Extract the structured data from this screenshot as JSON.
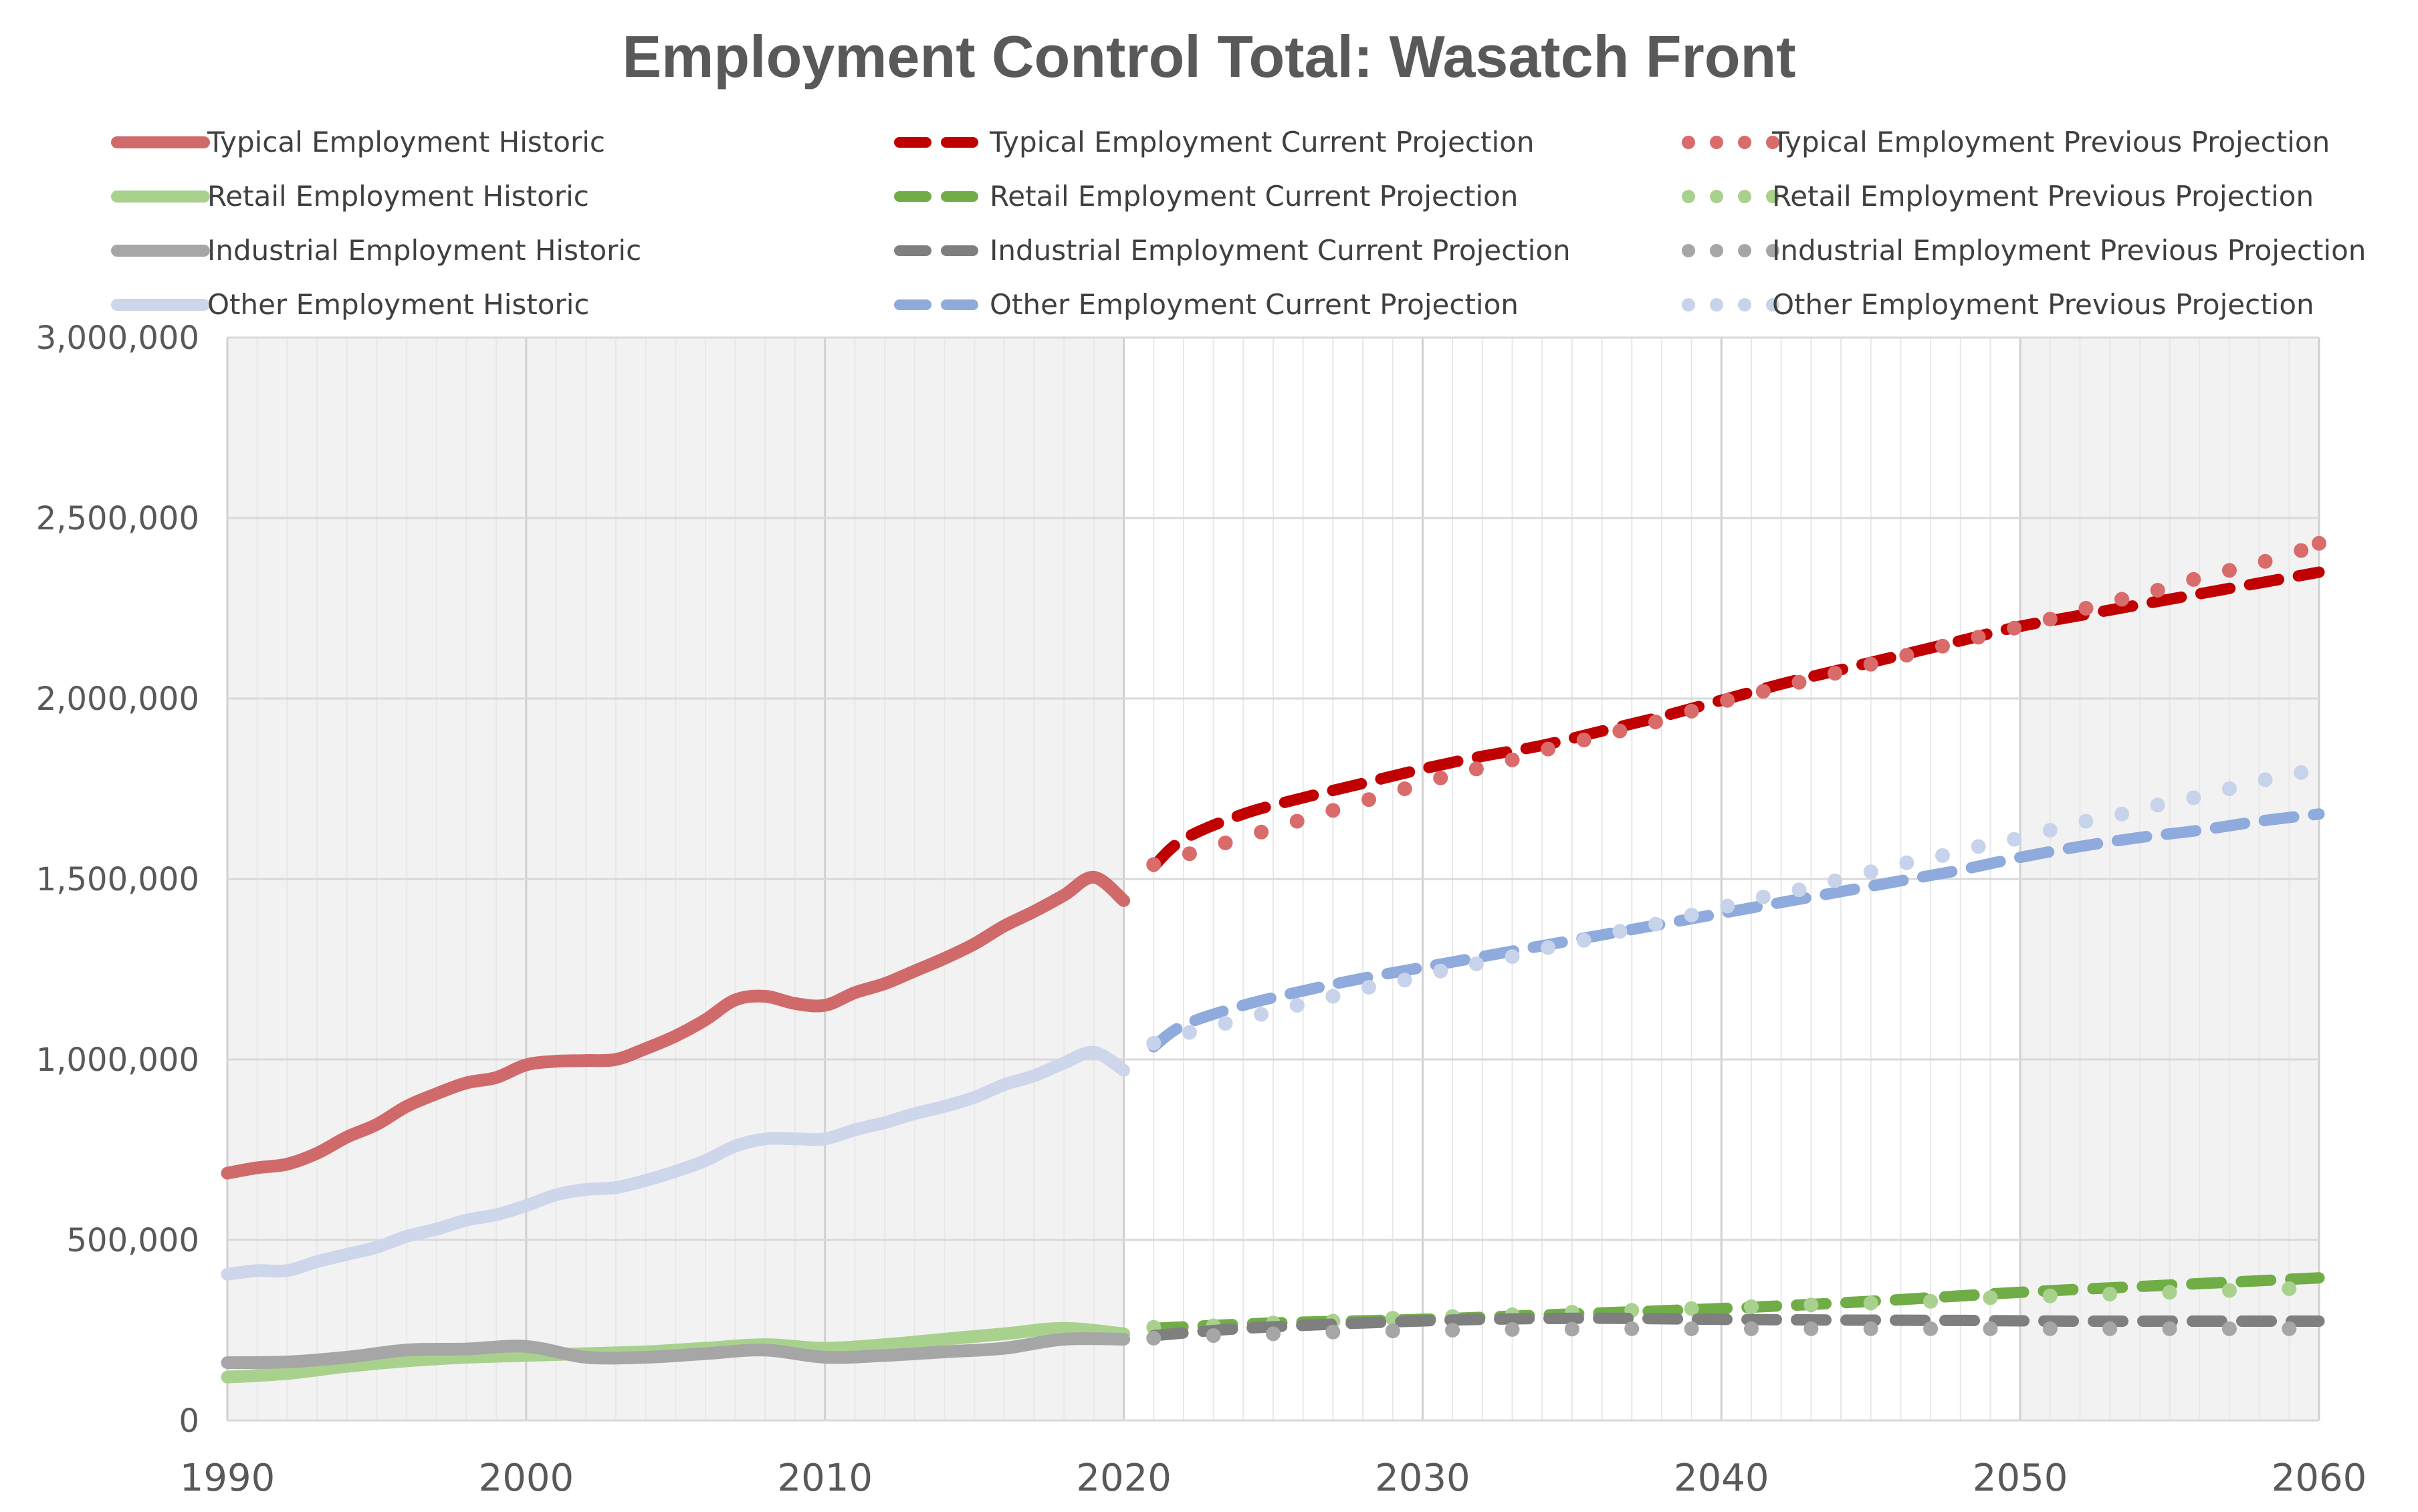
{
  "chart_data": {
    "type": "line",
    "title": "Employment Control Total: Wasatch Front",
    "xlabel": "",
    "ylabel": "",
    "xlim": [
      1990,
      2060
    ],
    "ylim": [
      0,
      3000000
    ],
    "x_ticks": [
      "1990",
      "2000",
      "2010",
      "2020",
      "2030",
      "2040",
      "2050",
      "2060"
    ],
    "y_ticks": [
      "0",
      "500,000",
      "1,000,000",
      "1,500,000",
      "2,000,000",
      "2,500,000",
      "3,000,000"
    ],
    "shaded_regions": [
      [
        1990,
        2020
      ],
      [
        2050,
        2060
      ]
    ],
    "legend_position": "top",
    "series": [
      {
        "name": "Typical Employment Historic",
        "style": "solid",
        "color": "#d06a6a",
        "x": [
          1990,
          1991,
          1992,
          1993,
          1994,
          1995,
          1996,
          1997,
          1998,
          1999,
          2000,
          2001,
          2002,
          2003,
          2004,
          2005,
          2006,
          2007,
          2008,
          2009,
          2010,
          2011,
          2012,
          2013,
          2014,
          2015,
          2016,
          2017,
          2018,
          2019,
          2020
        ],
        "y": [
          685000,
          700000,
          710000,
          740000,
          785000,
          820000,
          870000,
          905000,
          935000,
          950000,
          985000,
          995000,
          997000,
          1000000,
          1030000,
          1065000,
          1110000,
          1165000,
          1175000,
          1155000,
          1150000,
          1185000,
          1210000,
          1245000,
          1280000,
          1320000,
          1370000,
          1410000,
          1455000,
          1505000,
          1440000
        ]
      },
      {
        "name": "Typical Employment Current Projection",
        "style": "dashed",
        "color": "#c00000",
        "x": [
          2021,
          2022,
          2024,
          2026,
          2028,
          2030,
          2032,
          2034,
          2036,
          2038,
          2040,
          2042,
          2044,
          2046,
          2048,
          2050,
          2052,
          2054,
          2056,
          2058,
          2060
        ],
        "y": [
          1535000,
          1610000,
          1680000,
          1725000,
          1765000,
          1805000,
          1840000,
          1870000,
          1910000,
          1950000,
          1995000,
          2040000,
          2080000,
          2120000,
          2160000,
          2200000,
          2230000,
          2260000,
          2290000,
          2320000,
          2350000
        ]
      },
      {
        "name": "Typical Employment Previous Projection",
        "style": "dotted",
        "color": "#d96b6b",
        "x": [
          2021,
          2022.2,
          2023.4,
          2024.6,
          2025.8,
          2027,
          2028.2,
          2029.4,
          2030.6,
          2031.8,
          2033,
          2034.2,
          2035.4,
          2036.6,
          2037.8,
          2039,
          2040.2,
          2041.4,
          2042.6,
          2043.8,
          2045,
          2046.2,
          2047.4,
          2048.6,
          2049.8,
          2051,
          2052.2,
          2053.4,
          2054.6,
          2055.8,
          2057,
          2058.2,
          2059.4,
          2060
        ],
        "y": [
          1540000,
          1570000,
          1600000,
          1630000,
          1660000,
          1690000,
          1720000,
          1750000,
          1780000,
          1805000,
          1830000,
          1860000,
          1885000,
          1910000,
          1935000,
          1965000,
          1995000,
          2020000,
          2045000,
          2070000,
          2095000,
          2120000,
          2145000,
          2170000,
          2195000,
          2220000,
          2250000,
          2275000,
          2300000,
          2330000,
          2355000,
          2380000,
          2410000,
          2430000
        ]
      },
      {
        "name": "Retail Employment Historic",
        "style": "solid",
        "color": "#a9d18e",
        "x": [
          1990,
          1992,
          1994,
          1996,
          1998,
          2000,
          2002,
          2004,
          2006,
          2008,
          2010,
          2012,
          2014,
          2016,
          2018,
          2020
        ],
        "y": [
          120000,
          130000,
          150000,
          165000,
          175000,
          180000,
          185000,
          190000,
          200000,
          210000,
          200000,
          210000,
          225000,
          240000,
          255000,
          240000
        ]
      },
      {
        "name": "Retail Employment Current Projection",
        "style": "dashed",
        "color": "#70ad47",
        "x": [
          2021,
          2025,
          2030,
          2035,
          2040,
          2045,
          2050,
          2055,
          2060
        ],
        "y": [
          255000,
          270000,
          280000,
          295000,
          310000,
          330000,
          355000,
          375000,
          395000
        ]
      },
      {
        "name": "Retail Employment Previous Projection",
        "style": "dotted",
        "color": "#a9d18e",
        "x": [
          2021,
          2023,
          2025,
          2027,
          2029,
          2031,
          2033,
          2035,
          2037,
          2039,
          2041,
          2043,
          2045,
          2047,
          2049,
          2051,
          2053,
          2055,
          2057,
          2059
        ],
        "y": [
          258000,
          262000,
          270000,
          275000,
          283000,
          288000,
          293000,
          300000,
          305000,
          310000,
          315000,
          320000,
          325000,
          330000,
          340000,
          345000,
          350000,
          355000,
          360000,
          365000
        ]
      },
      {
        "name": "Industrial Employment Historic",
        "style": "solid",
        "color": "#a6a6a6",
        "x": [
          1990,
          1992,
          1994,
          1996,
          1998,
          2000,
          2002,
          2004,
          2006,
          2008,
          2010,
          2012,
          2014,
          2016,
          2018,
          2020
        ],
        "y": [
          160000,
          162000,
          175000,
          195000,
          198000,
          205000,
          175000,
          175000,
          185000,
          195000,
          175000,
          180000,
          190000,
          200000,
          225000,
          225000
        ]
      },
      {
        "name": "Industrial Employment Current Projection",
        "style": "dashed",
        "color": "#7f7f7f",
        "x": [
          2021,
          2024,
          2028,
          2032,
          2036,
          2040,
          2044,
          2048,
          2052,
          2056,
          2060
        ],
        "y": [
          235000,
          255000,
          270000,
          280000,
          283000,
          280000,
          278000,
          277000,
          275000,
          275000,
          275000
        ]
      },
      {
        "name": "Industrial Employment Previous Projection",
        "style": "dotted",
        "color": "#a6a6a6",
        "x": [
          2021,
          2023,
          2025,
          2027,
          2029,
          2031,
          2033,
          2035,
          2037,
          2039,
          2041,
          2043,
          2045,
          2047,
          2049,
          2051,
          2053,
          2055,
          2057,
          2059
        ],
        "y": [
          228000,
          235000,
          240000,
          245000,
          248000,
          250000,
          252000,
          253000,
          254000,
          254000,
          254000,
          254000,
          254000,
          254000,
          254000,
          254000,
          254000,
          254000,
          254000,
          254000
        ]
      },
      {
        "name": "Other Employment Historic",
        "style": "solid",
        "color": "#cdd6ea",
        "x": [
          1990,
          1991,
          1992,
          1993,
          1994,
          1995,
          1996,
          1997,
          1998,
          1999,
          2000,
          2001,
          2002,
          2003,
          2004,
          2005,
          2006,
          2007,
          2008,
          2009,
          2010,
          2011,
          2012,
          2013,
          2014,
          2015,
          2016,
          2017,
          2018,
          2019,
          2020
        ],
        "y": [
          405000,
          415000,
          415000,
          440000,
          460000,
          480000,
          510000,
          530000,
          555000,
          570000,
          595000,
          625000,
          640000,
          645000,
          665000,
          690000,
          720000,
          760000,
          780000,
          780000,
          780000,
          805000,
          825000,
          850000,
          870000,
          895000,
          930000,
          955000,
          990000,
          1020000,
          970000
        ]
      },
      {
        "name": "Other Employment Current Projection",
        "style": "dashed",
        "color": "#8faadc",
        "x": [
          2021,
          2022,
          2024,
          2026,
          2028,
          2030,
          2032,
          2034,
          2036,
          2038,
          2040,
          2042,
          2044,
          2046,
          2048,
          2050,
          2052,
          2054,
          2056,
          2058,
          2060
        ],
        "y": [
          1035000,
          1095000,
          1150000,
          1190000,
          1225000,
          1255000,
          1285000,
          1315000,
          1345000,
          1375000,
          1405000,
          1435000,
          1465000,
          1495000,
          1525000,
          1560000,
          1590000,
          1615000,
          1635000,
          1660000,
          1680000
        ]
      },
      {
        "name": "Other Employment Previous Projection",
        "style": "dotted",
        "color": "#c7d3ea",
        "x": [
          2021,
          2022.2,
          2023.4,
          2024.6,
          2025.8,
          2027,
          2028.2,
          2029.4,
          2030.6,
          2031.8,
          2033,
          2034.2,
          2035.4,
          2036.6,
          2037.8,
          2039,
          2040.2,
          2041.4,
          2042.6,
          2043.8,
          2045,
          2046.2,
          2047.4,
          2048.6,
          2049.8,
          2051,
          2052.2,
          2053.4,
          2054.6,
          2055.8,
          2057,
          2058.2,
          2059.4
        ],
        "y": [
          1045000,
          1075000,
          1100000,
          1125000,
          1150000,
          1175000,
          1200000,
          1220000,
          1245000,
          1265000,
          1285000,
          1310000,
          1330000,
          1355000,
          1375000,
          1400000,
          1425000,
          1450000,
          1470000,
          1495000,
          1520000,
          1545000,
          1565000,
          1590000,
          1610000,
          1635000,
          1660000,
          1680000,
          1705000,
          1725000,
          1750000,
          1775000,
          1795000
        ]
      }
    ]
  }
}
